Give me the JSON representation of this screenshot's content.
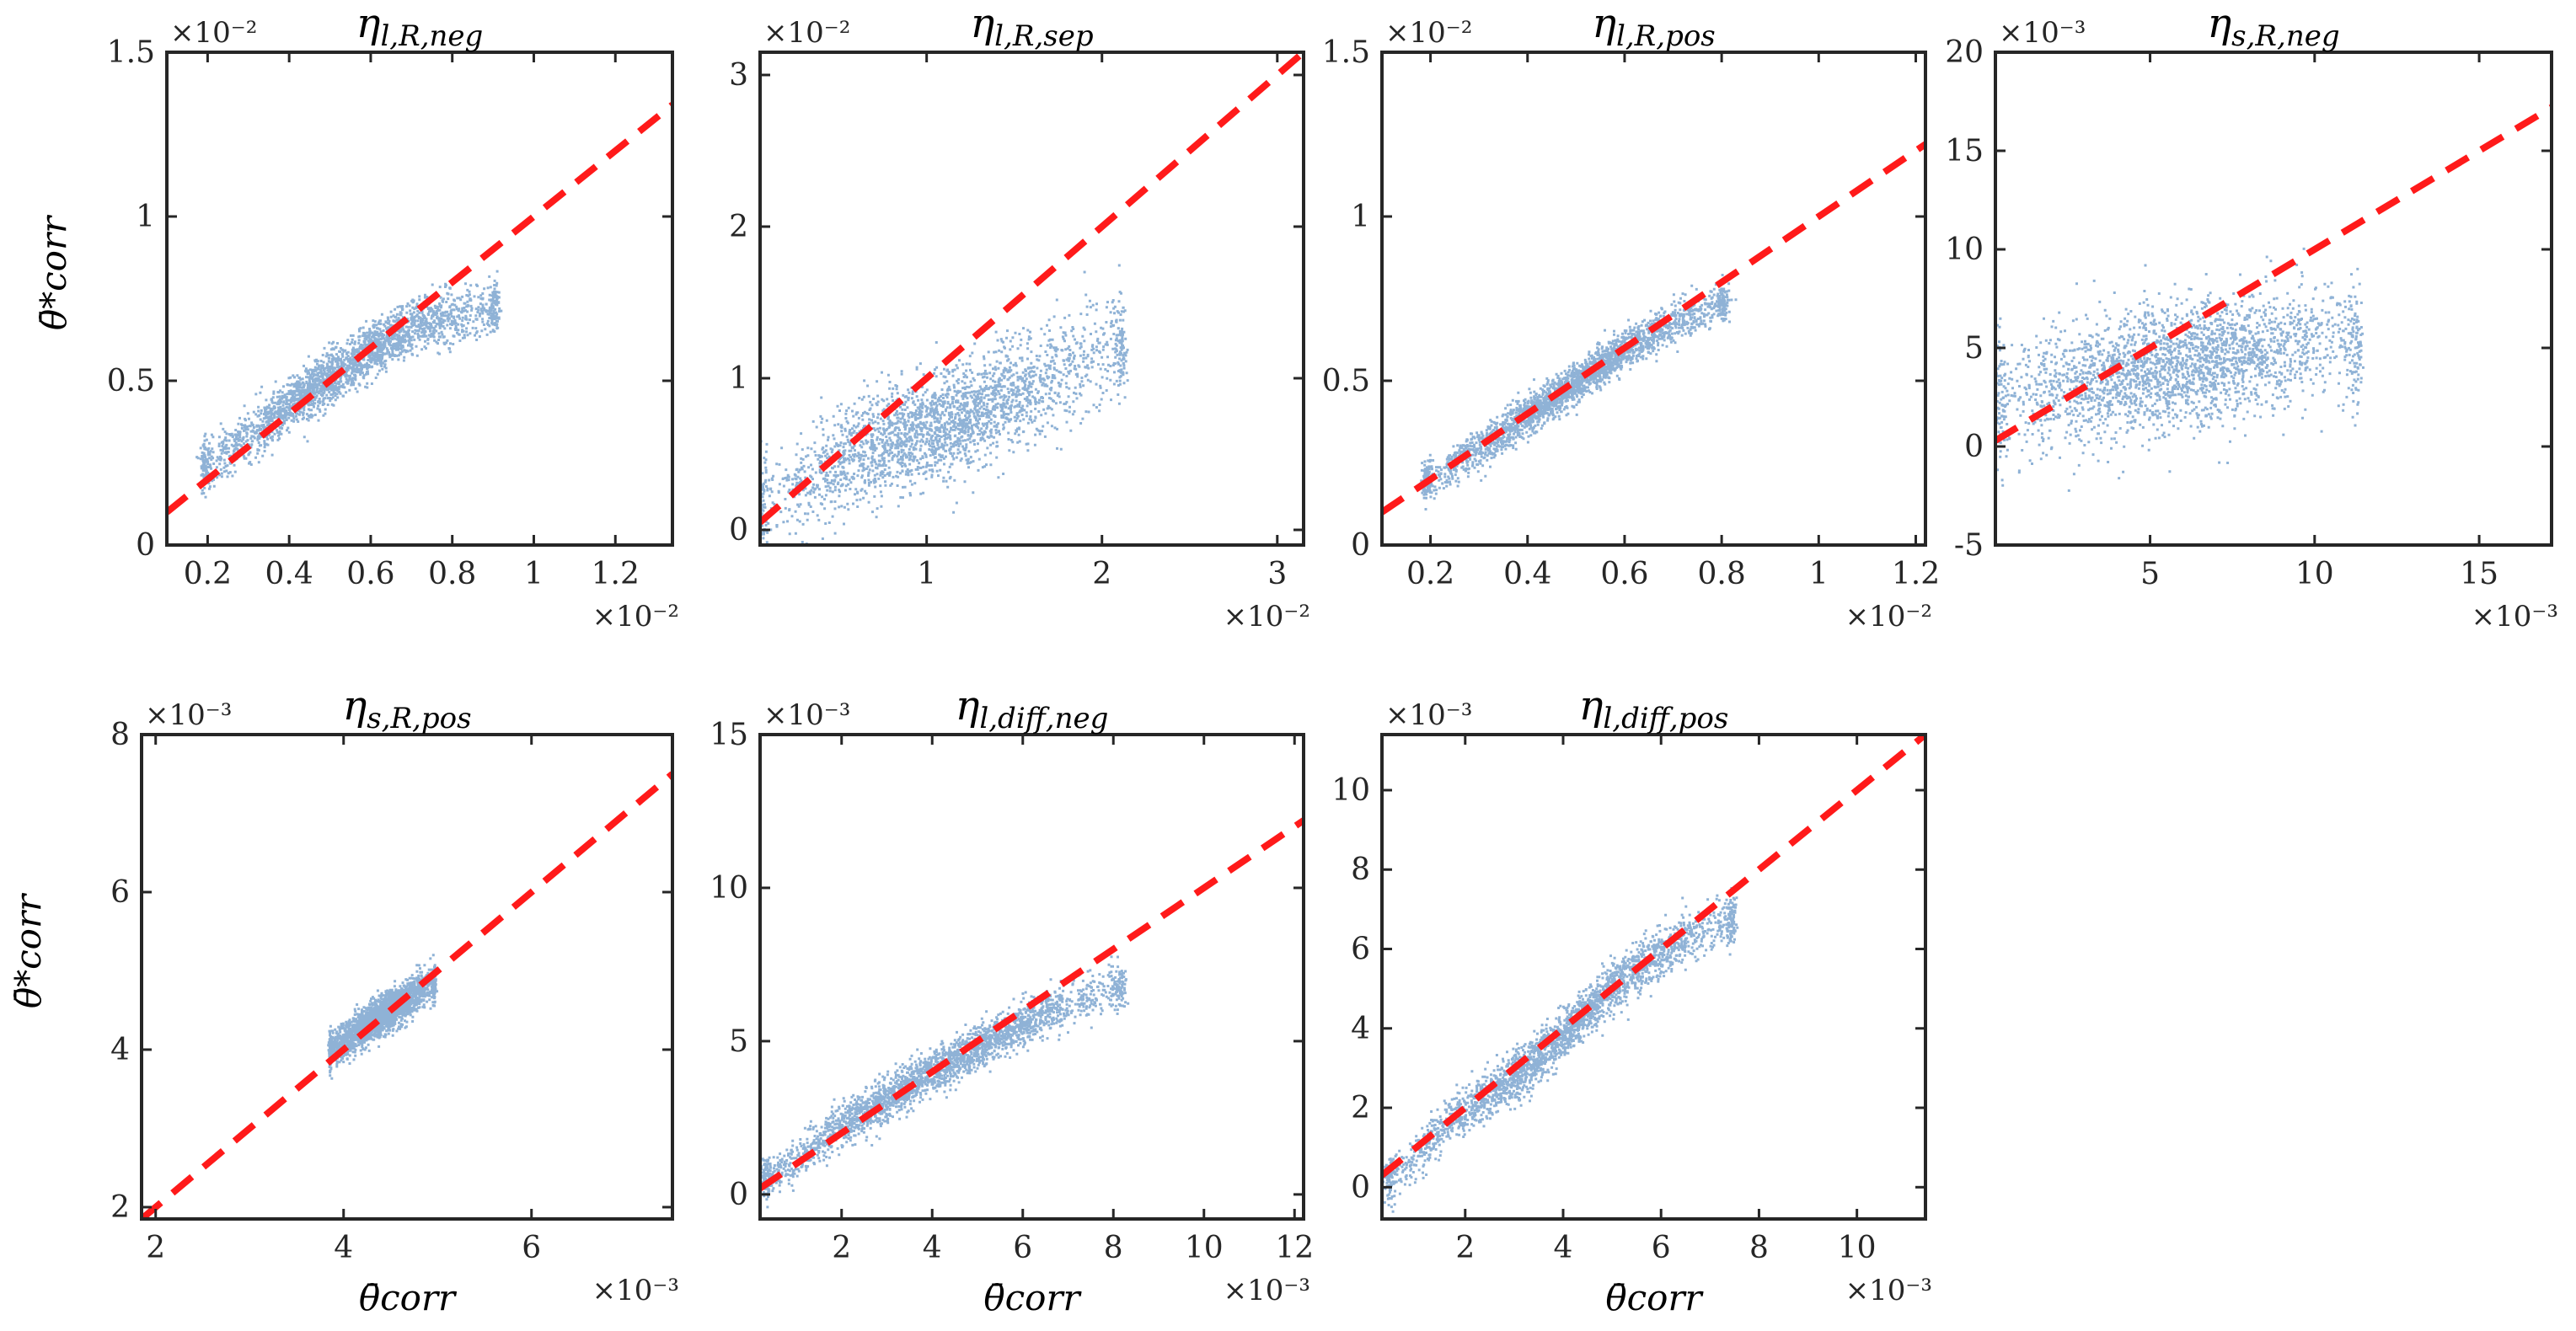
{
  "figure": {
    "xlabel": "θ̄corr",
    "ylabel": "θ̄*corr",
    "scatter_color": "#8fb2d6",
    "fit_color": "#ff1a1a"
  },
  "chart_data": [
    {
      "type": "scatter",
      "title": "ηl,R,neg",
      "title_parts": {
        "base": "η",
        "sub": "l,R,neg"
      },
      "xlim": [
        0.1,
        1.34
      ],
      "ylim": [
        0.0,
        1.5
      ],
      "xticks": [
        0.2,
        0.4,
        0.6,
        0.8,
        1.0,
        1.2
      ],
      "xtick_labels": [
        "0.2",
        "0.4",
        "0.6",
        "0.8",
        "1",
        "1.2"
      ],
      "yticks": [
        0,
        0.5,
        1.0,
        1.5
      ],
      "ytick_labels": [
        "0",
        "0.5",
        "1",
        "1.5"
      ],
      "x_multiplier": "×10⁻²",
      "y_multiplier": "×10⁻²",
      "show_xlabel": false,
      "show_ylabel": true,
      "fit_line": {
        "x": [
          0.1,
          1.34
        ],
        "y": [
          0.1,
          1.34
        ]
      },
      "scatter_trend": [
        [
          0.2,
          0.25
        ],
        [
          0.3,
          0.33
        ],
        [
          0.4,
          0.43
        ],
        [
          0.5,
          0.52
        ],
        [
          0.6,
          0.6
        ],
        [
          0.7,
          0.67
        ],
        [
          0.8,
          0.7
        ],
        [
          0.9,
          0.72
        ]
      ],
      "scatter_spread": 0.04,
      "scatter_x_range": [
        0.19,
        0.9
      ]
    },
    {
      "type": "scatter",
      "title": "ηl,R,sep",
      "title_parts": {
        "base": "η",
        "sub": "l,R,sep"
      },
      "xlim": [
        0.05,
        3.15
      ],
      "ylim": [
        -0.1,
        3.15
      ],
      "xticks": [
        1,
        2,
        3
      ],
      "xtick_labels": [
        "1",
        "2",
        "3"
      ],
      "yticks": [
        0,
        1,
        2,
        3
      ],
      "ytick_labels": [
        "0",
        "1",
        "2",
        "3"
      ],
      "x_multiplier": "×10⁻²",
      "y_multiplier": "×10⁻²",
      "show_xlabel": false,
      "show_ylabel": false,
      "fit_line": {
        "x": [
          0.05,
          3.15
        ],
        "y": [
          0.05,
          3.15
        ]
      },
      "scatter_trend": [
        [
          0.1,
          0.15
        ],
        [
          0.4,
          0.4
        ],
        [
          0.8,
          0.6
        ],
        [
          1.2,
          0.75
        ],
        [
          1.6,
          0.95
        ],
        [
          2.1,
          1.25
        ]
      ],
      "scatter_spread": 0.18,
      "scatter_x_range": [
        0.06,
        2.1
      ]
    },
    {
      "type": "scatter",
      "title": "ηl,R,pos",
      "title_parts": {
        "base": "η",
        "sub": "l,R,pos"
      },
      "xlim": [
        0.1,
        1.22
      ],
      "ylim": [
        0.0,
        1.5
      ],
      "xticks": [
        0.2,
        0.4,
        0.6,
        0.8,
        1.0,
        1.2
      ],
      "xtick_labels": [
        "0.2",
        "0.4",
        "0.6",
        "0.8",
        "1",
        "1.2"
      ],
      "yticks": [
        0,
        0.5,
        1.0,
        1.5
      ],
      "ytick_labels": [
        "0",
        "0.5",
        "1",
        "1.5"
      ],
      "x_multiplier": "×10⁻²",
      "y_multiplier": "×10⁻²",
      "show_xlabel": false,
      "show_ylabel": false,
      "fit_line": {
        "x": [
          0.1,
          1.22
        ],
        "y": [
          0.1,
          1.22
        ]
      },
      "scatter_trend": [
        [
          0.2,
          0.2
        ],
        [
          0.3,
          0.3
        ],
        [
          0.4,
          0.4
        ],
        [
          0.5,
          0.5
        ],
        [
          0.6,
          0.6
        ],
        [
          0.7,
          0.68
        ],
        [
          0.8,
          0.74
        ]
      ],
      "scatter_spread": 0.03,
      "scatter_x_range": [
        0.19,
        0.8
      ]
    },
    {
      "type": "scatter",
      "title": "ηs,R,neg",
      "title_parts": {
        "base": "η",
        "sub": "s,R,neg"
      },
      "xlim": [
        0.3,
        17.2
      ],
      "ylim": [
        -5,
        20
      ],
      "xticks": [
        5,
        10,
        15
      ],
      "xtick_labels": [
        "5",
        "10",
        "15"
      ],
      "yticks": [
        -5,
        0,
        5,
        10,
        15,
        20
      ],
      "ytick_labels": [
        "-5",
        "0",
        "5",
        "10",
        "15",
        "20"
      ],
      "x_multiplier": "×10⁻³",
      "y_multiplier": "×10⁻³",
      "show_xlabel": false,
      "show_ylabel": false,
      "fit_line": {
        "x": [
          0.3,
          17.2
        ],
        "y": [
          0.3,
          17.2
        ]
      },
      "scatter_trend": [
        [
          0.5,
          2.5
        ],
        [
          3,
          3.3
        ],
        [
          6,
          4.2
        ],
        [
          9,
          5.0
        ],
        [
          11,
          5.5
        ]
      ],
      "scatter_spread": 1.6,
      "scatter_x_range": [
        0.4,
        11.2
      ]
    },
    {
      "type": "scatter",
      "title": "ηs,R,pos",
      "title_parts": {
        "base": "η",
        "sub": "s,R,pos"
      },
      "xlim": [
        1.85,
        7.5
      ],
      "ylim": [
        1.85,
        8.0
      ],
      "xticks": [
        2,
        4,
        6
      ],
      "xtick_labels": [
        "2",
        "4",
        "6"
      ],
      "yticks": [
        2,
        4,
        6,
        8
      ],
      "ytick_labels": [
        "2",
        "4",
        "6",
        "8"
      ],
      "x_multiplier": "×10⁻³",
      "y_multiplier": "×10⁻³",
      "show_xlabel": true,
      "show_ylabel": true,
      "fit_line": {
        "x": [
          1.85,
          7.5
        ],
        "y": [
          1.85,
          7.5
        ]
      },
      "scatter_trend": [
        [
          3.85,
          4.0
        ],
        [
          4.2,
          4.3
        ],
        [
          4.6,
          4.6
        ],
        [
          4.9,
          4.85
        ]
      ],
      "scatter_spread": 0.12,
      "scatter_x_range": [
        3.85,
        4.95
      ]
    },
    {
      "type": "scatter",
      "title": "ηl,diff,neg",
      "title_parts": {
        "base": "η",
        "sub": "l,diff,neg"
      },
      "xlim": [
        0.2,
        12.2
      ],
      "ylim": [
        -0.8,
        15
      ],
      "xticks": [
        2,
        4,
        6,
        8,
        10,
        12
      ],
      "xtick_labels": [
        "2",
        "4",
        "6",
        "8",
        "10",
        "12"
      ],
      "yticks": [
        0,
        5,
        10,
        15
      ],
      "ytick_labels": [
        "0",
        "5",
        "10",
        "15"
      ],
      "x_multiplier": "×10⁻³",
      "y_multiplier": "×10⁻³",
      "show_xlabel": true,
      "show_ylabel": false,
      "fit_line": {
        "x": [
          0.2,
          12.2
        ],
        "y": [
          0.2,
          12.2
        ]
      },
      "scatter_trend": [
        [
          0.4,
          0.6
        ],
        [
          1.5,
          1.8
        ],
        [
          3,
          3.2
        ],
        [
          4.5,
          4.5
        ],
        [
          6,
          5.6
        ],
        [
          7,
          6.3
        ],
        [
          8.1,
          6.8
        ]
      ],
      "scatter_spread": 0.35,
      "scatter_x_range": [
        0.3,
        8.1
      ]
    },
    {
      "type": "scatter",
      "title": "ηl,diff,pos",
      "title_parts": {
        "base": "η",
        "sub": "l,diff,pos"
      },
      "xlim": [
        0.3,
        11.4
      ],
      "ylim": [
        -0.8,
        11.4
      ],
      "xticks": [
        2,
        4,
        6,
        8,
        10
      ],
      "xtick_labels": [
        "2",
        "4",
        "6",
        "8",
        "10"
      ],
      "yticks": [
        0,
        2,
        4,
        6,
        8,
        10
      ],
      "ytick_labels": [
        "0",
        "2",
        "4",
        "6",
        "8",
        "10"
      ],
      "x_multiplier": "×10⁻³",
      "y_multiplier": "×10⁻³",
      "show_xlabel": true,
      "show_ylabel": false,
      "fit_line": {
        "x": [
          0.3,
          11.4
        ],
        "y": [
          0.3,
          11.4
        ]
      },
      "scatter_trend": [
        [
          0.5,
          0.2
        ],
        [
          1.5,
          1.5
        ],
        [
          2.5,
          2.4
        ],
        [
          3.5,
          3.3
        ],
        [
          4.5,
          4.5
        ],
        [
          5.5,
          5.6
        ],
        [
          6.5,
          6.3
        ],
        [
          7.4,
          6.8
        ]
      ],
      "scatter_spread": 0.3,
      "scatter_x_range": [
        0.45,
        7.4
      ]
    }
  ]
}
